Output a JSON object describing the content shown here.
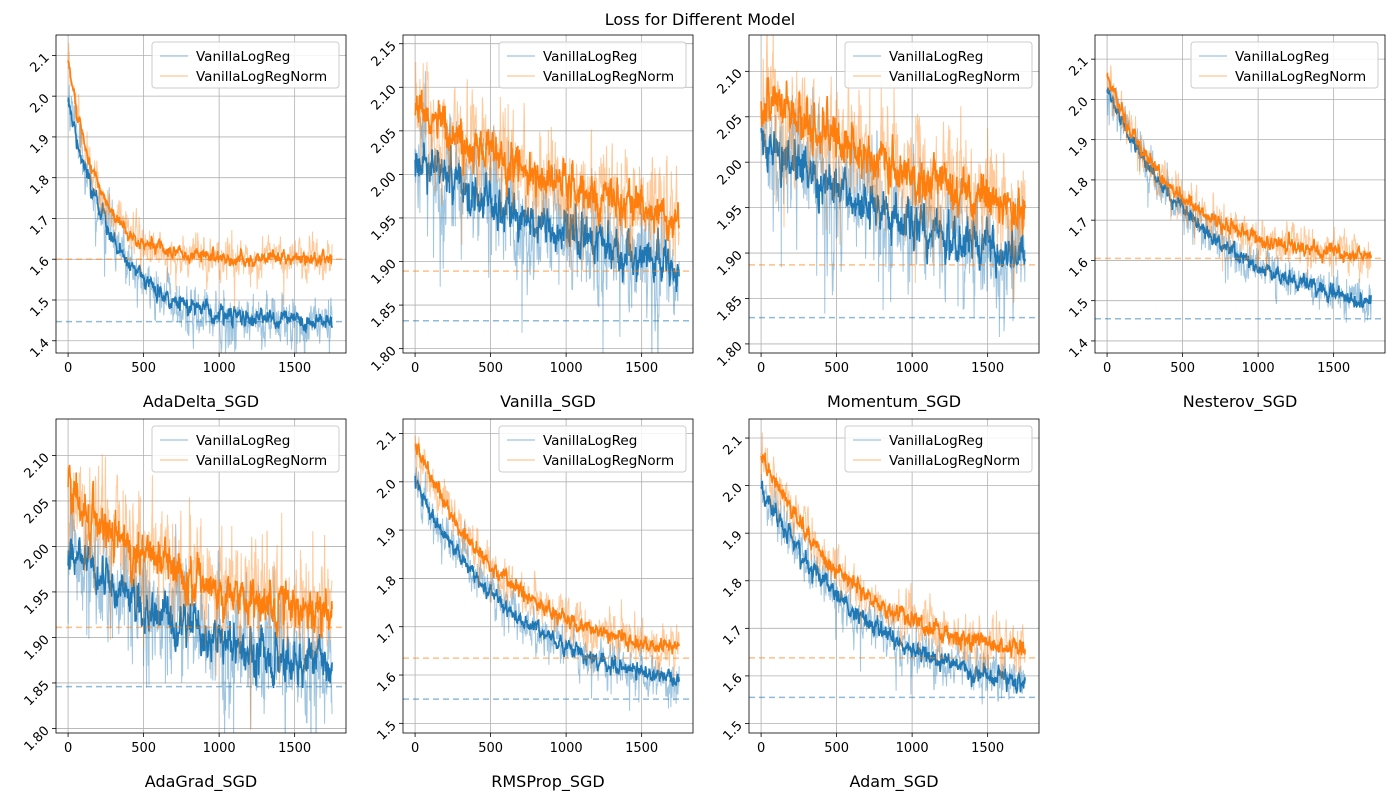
{
  "figure": {
    "title": "Loss for Different Model"
  },
  "colors": {
    "blue": "#1f77b4",
    "orange": "#ff7f0e",
    "grid": "#b0b0b0",
    "axis": "#000000"
  },
  "chart_data": [
    {
      "type": "line",
      "xlabel": "AdaDelta_SGD",
      "xlim": [
        -80,
        1840
      ],
      "ylim": [
        1.37,
        2.15
      ],
      "xticks": [
        0,
        500,
        1000,
        1500
      ],
      "yticks": [
        1.4,
        1.5,
        1.6,
        1.7,
        1.8,
        1.9,
        2.0,
        2.1
      ],
      "ytick_labels": [
        "1.4",
        "1.5",
        "1.6",
        "1.7",
        "1.8",
        "1.9",
        "2.0",
        "2.1"
      ],
      "grid": true,
      "legend": "top-right",
      "series": [
        {
          "name": "VanillaLogReg",
          "color": "#1f77b4",
          "start": 2.0,
          "end": 1.445,
          "tau": 300,
          "noise_raw": 0.025,
          "noise_smooth": 0.008,
          "hline": 1.447
        },
        {
          "name": "VanillaLogRegNorm",
          "color": "#ff7f0e",
          "start": 2.09,
          "end": 1.6,
          "tau": 200,
          "noise_raw": 0.02,
          "noise_smooth": 0.006,
          "hline": 1.6
        }
      ]
    },
    {
      "type": "line",
      "xlabel": "Vanilla_SGD",
      "xlim": [
        -80,
        1840
      ],
      "ylim": [
        1.795,
        2.16
      ],
      "xticks": [
        0,
        500,
        1000,
        1500
      ],
      "yticks": [
        1.8,
        1.85,
        1.9,
        1.95,
        2.0,
        2.05,
        2.1,
        2.15
      ],
      "ytick_labels": [
        "1.80",
        "1.85",
        "1.90",
        "1.95",
        "2.00",
        "2.05",
        "2.10",
        "2.15"
      ],
      "grid": true,
      "legend": "top-right",
      "series": [
        {
          "name": "VanillaLogReg",
          "color": "#1f77b4",
          "start": 2.02,
          "end": 1.832,
          "tau": 1600,
          "noise_raw": 0.025,
          "noise_smooth": 0.009,
          "hline": 1.832
        },
        {
          "name": "VanillaLogRegNorm",
          "color": "#ff7f0e",
          "start": 2.075,
          "end": 1.888,
          "tau": 1600,
          "noise_raw": 0.025,
          "noise_smooth": 0.009,
          "hline": 1.889
        }
      ]
    },
    {
      "type": "line",
      "xlabel": "Momentum_SGD",
      "xlim": [
        -80,
        1840
      ],
      "ylim": [
        1.79,
        2.14
      ],
      "xticks": [
        0,
        500,
        1000,
        1500
      ],
      "yticks": [
        1.8,
        1.85,
        1.9,
        1.95,
        2.0,
        2.05,
        2.1
      ],
      "ytick_labels": [
        "1.80",
        "1.85",
        "1.90",
        "1.95",
        "2.00",
        "2.05",
        "2.10"
      ],
      "grid": true,
      "legend": "top-right",
      "series": [
        {
          "name": "VanillaLogReg",
          "color": "#1f77b4",
          "start": 2.02,
          "end": 1.83,
          "tau": 1600,
          "noise_raw": 0.025,
          "noise_smooth": 0.009,
          "hline": 1.829
        },
        {
          "name": "VanillaLogRegNorm",
          "color": "#ff7f0e",
          "start": 2.075,
          "end": 1.886,
          "tau": 1600,
          "noise_raw": 0.025,
          "noise_smooth": 0.009,
          "hline": 1.887
        }
      ]
    },
    {
      "type": "line",
      "xlabel": "Nesterov_SGD",
      "xlim": [
        -80,
        1840
      ],
      "ylim": [
        1.37,
        2.16
      ],
      "xticks": [
        0,
        500,
        1000,
        1500
      ],
      "yticks": [
        1.4,
        1.5,
        1.6,
        1.7,
        1.8,
        1.9,
        2.0,
        2.1
      ],
      "ytick_labels": [
        "1.4",
        "1.5",
        "1.6",
        "1.7",
        "1.8",
        "1.9",
        "2.0",
        "2.1"
      ],
      "grid": true,
      "legend": "top-right",
      "series": [
        {
          "name": "VanillaLogReg",
          "color": "#1f77b4",
          "start": 2.02,
          "end": 1.45,
          "tau": 700,
          "noise_raw": 0.02,
          "noise_smooth": 0.007,
          "hline": 1.455
        },
        {
          "name": "VanillaLogRegNorm",
          "color": "#ff7f0e",
          "start": 2.06,
          "end": 1.605,
          "tau": 450,
          "noise_raw": 0.02,
          "noise_smooth": 0.007,
          "hline": 1.605
        }
      ]
    },
    {
      "type": "line",
      "xlabel": "AdaGrad_SGD",
      "xlim": [
        -80,
        1840
      ],
      "ylim": [
        1.795,
        2.14
      ],
      "xticks": [
        0,
        500,
        1000,
        1500
      ],
      "yticks": [
        1.8,
        1.85,
        1.9,
        1.95,
        2.0,
        2.05,
        2.1
      ],
      "ytick_labels": [
        "1.80",
        "1.85",
        "1.90",
        "1.95",
        "2.00",
        "2.05",
        "2.10"
      ],
      "grid": true,
      "legend": "top-right",
      "series": [
        {
          "name": "VanillaLogReg",
          "color": "#1f77b4",
          "start": 2.0,
          "end": 1.845,
          "tau": 900,
          "noise_raw": 0.025,
          "noise_smooth": 0.009,
          "hline": 1.846
        },
        {
          "name": "VanillaLogRegNorm",
          "color": "#ff7f0e",
          "start": 2.055,
          "end": 1.905,
          "tau": 900,
          "noise_raw": 0.025,
          "noise_smooth": 0.009,
          "hline": 1.911
        }
      ]
    },
    {
      "type": "line",
      "xlabel": "RMSProp_SGD",
      "xlim": [
        -80,
        1840
      ],
      "ylim": [
        1.48,
        2.13
      ],
      "xticks": [
        0,
        500,
        1000,
        1500
      ],
      "yticks": [
        1.5,
        1.6,
        1.7,
        1.8,
        1.9,
        2.0,
        2.1
      ],
      "ytick_labels": [
        "1.5",
        "1.6",
        "1.7",
        "1.8",
        "1.9",
        "2.0",
        "2.1"
      ],
      "grid": true,
      "legend": "top-right",
      "series": [
        {
          "name": "VanillaLogReg",
          "color": "#1f77b4",
          "start": 2.0,
          "end": 1.55,
          "tau": 700,
          "noise_raw": 0.018,
          "noise_smooth": 0.006,
          "hline": 1.55
        },
        {
          "name": "VanillaLogRegNorm",
          "color": "#ff7f0e",
          "start": 2.08,
          "end": 1.63,
          "tau": 600,
          "noise_raw": 0.018,
          "noise_smooth": 0.006,
          "hline": 1.635
        }
      ]
    },
    {
      "type": "line",
      "xlabel": "Adam_SGD",
      "xlim": [
        -80,
        1840
      ],
      "ylim": [
        1.48,
        2.14
      ],
      "xticks": [
        0,
        500,
        1000,
        1500
      ],
      "yticks": [
        1.5,
        1.6,
        1.7,
        1.8,
        1.9,
        2.0,
        2.1
      ],
      "ytick_labels": [
        "1.5",
        "1.6",
        "1.7",
        "1.8",
        "1.9",
        "2.0",
        "2.1"
      ],
      "grid": true,
      "legend": "top-right",
      "series": [
        {
          "name": "VanillaLogReg",
          "color": "#1f77b4",
          "start": 2.0,
          "end": 1.55,
          "tau": 700,
          "noise_raw": 0.02,
          "noise_smooth": 0.007,
          "hline": 1.555
        },
        {
          "name": "VanillaLogRegNorm",
          "color": "#ff7f0e",
          "start": 2.07,
          "end": 1.635,
          "tau": 600,
          "noise_raw": 0.02,
          "noise_smooth": 0.007,
          "hline": 1.638
        }
      ]
    }
  ]
}
